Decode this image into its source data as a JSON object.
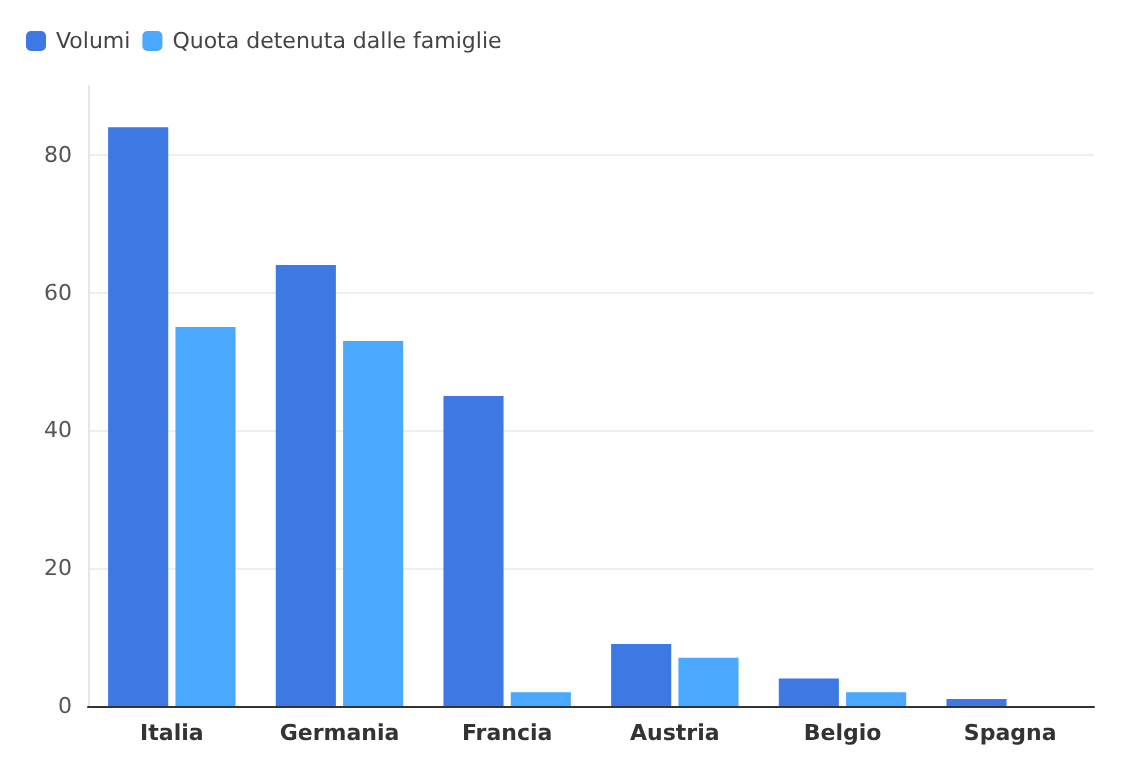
{
  "chart_data": {
    "type": "bar",
    "categories": [
      "Italia",
      "Germania",
      "Francia",
      "Austria",
      "Belgio",
      "Spagna"
    ],
    "series": [
      {
        "name": "Volumi",
        "color": "#3d78e3",
        "values": [
          84,
          64,
          45,
          9,
          4,
          1
        ]
      },
      {
        "name": "Quota detenuta dalle famiglie",
        "color": "#4aa8ff",
        "values": [
          55,
          53,
          2,
          7,
          2,
          0
        ]
      }
    ],
    "ylim": [
      0,
      90
    ],
    "yticks": [
      0,
      20,
      40,
      60,
      80
    ],
    "grid": "y",
    "legend": "top left"
  }
}
